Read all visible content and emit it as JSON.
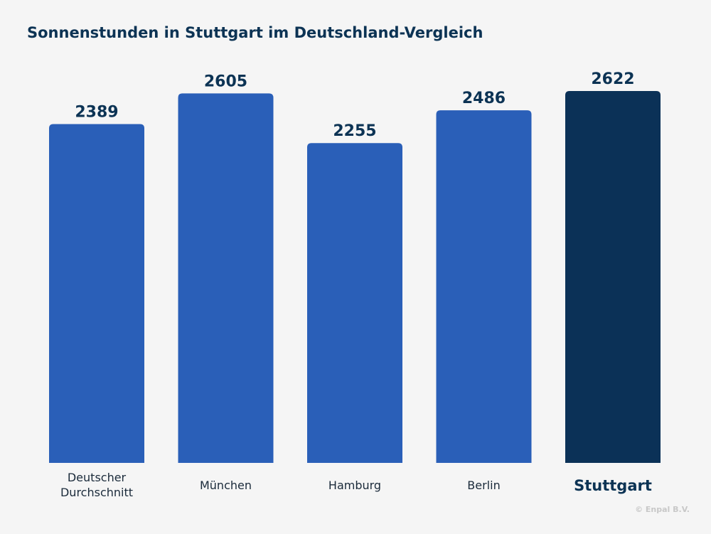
{
  "chart_data": {
    "type": "bar",
    "title": "Sonnenstunden in Stuttgart im Deutschland-Vergleich",
    "categories": [
      [
        "Deutscher",
        "Durchschnitt"
      ],
      [
        "München"
      ],
      [
        "Hamburg"
      ],
      [
        "Berlin"
      ],
      [
        "Stuttgart"
      ]
    ],
    "values": [
      2389,
      2605,
      2255,
      2486,
      2622
    ],
    "value_labels": [
      "2389",
      "2605",
      "2255",
      "2486",
      "2622"
    ],
    "highlight_index": 4,
    "ylim": [
      0,
      2622
    ],
    "grid": false,
    "legend": "none",
    "colors": {
      "bar": "#2a5fb8",
      "highlight": "#0b3157",
      "label": "#0c3354"
    }
  },
  "footer": {
    "copyright": "© Enpal B.V."
  }
}
